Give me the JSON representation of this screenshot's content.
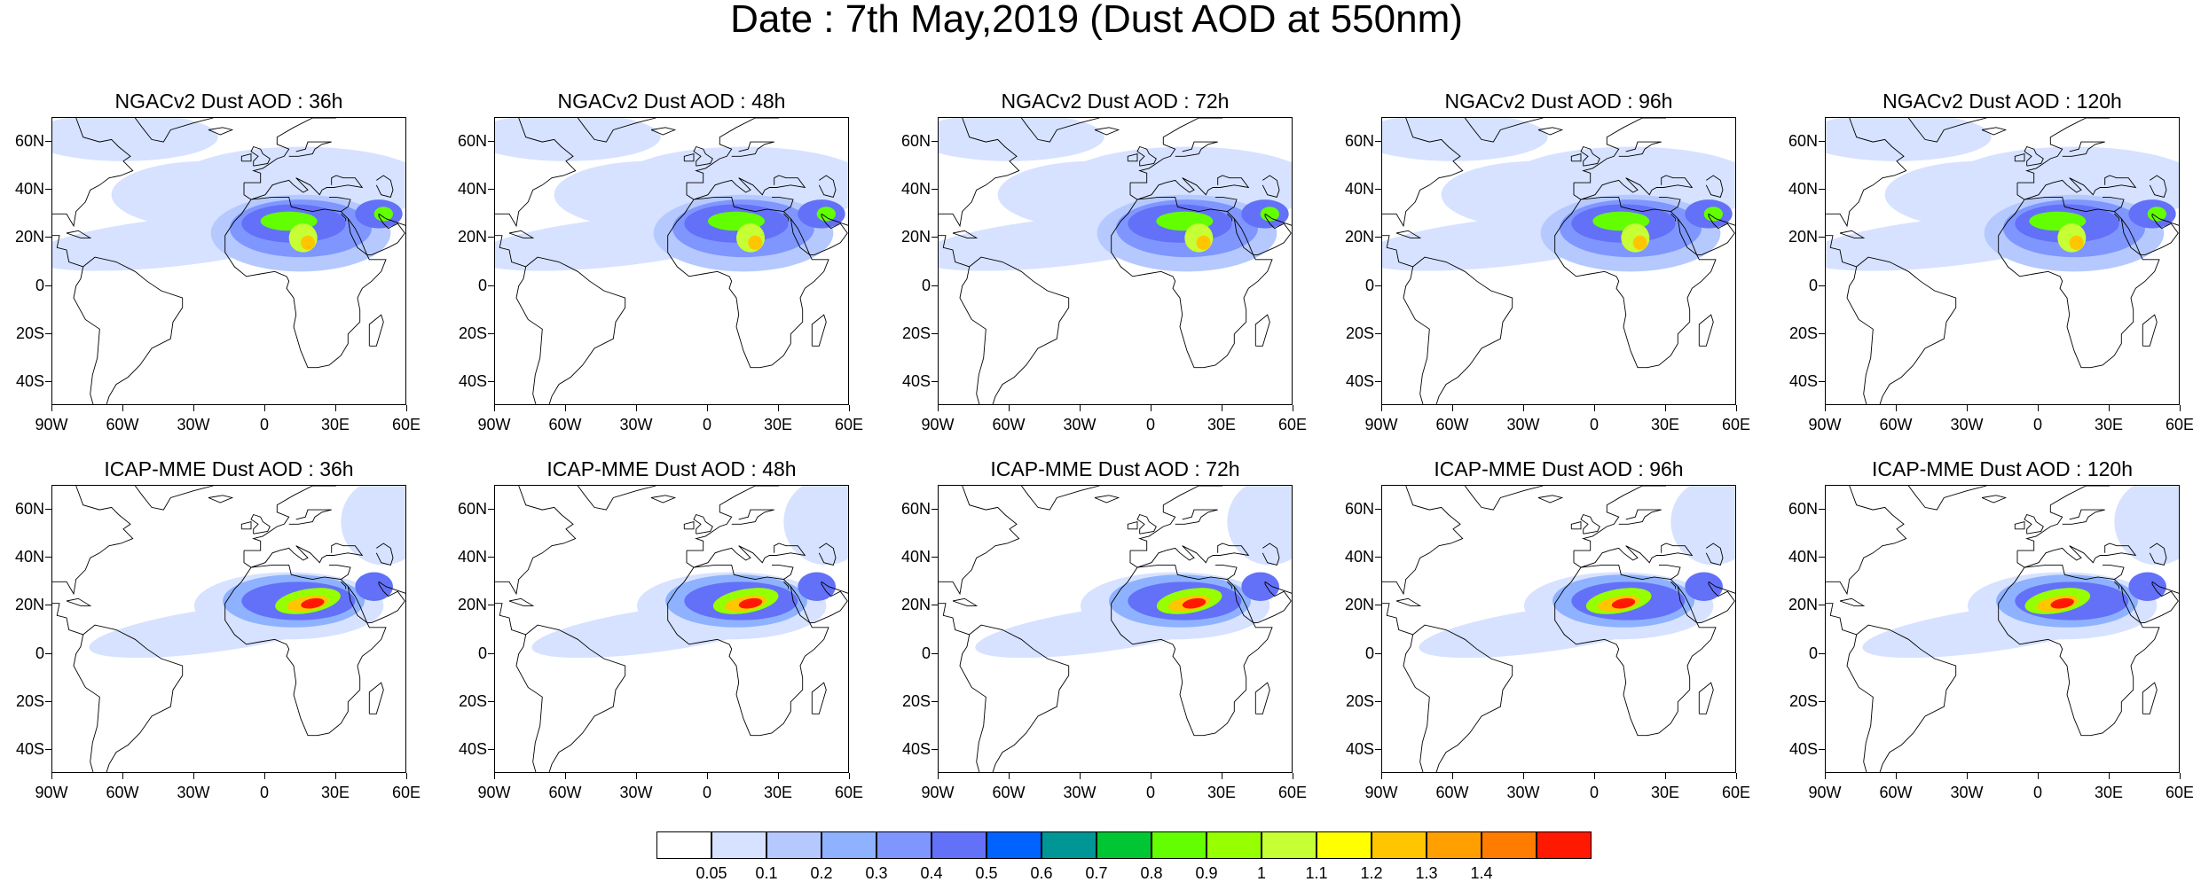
{
  "title": "Date : 7th May,2019 (Dust AOD at 550nm)",
  "panels": [
    {
      "title": "NGACv2 Dust AOD : 36h",
      "model": "ngac",
      "hour": 36
    },
    {
      "title": "NGACv2 Dust AOD : 48h",
      "model": "ngac",
      "hour": 48
    },
    {
      "title": "NGACv2 Dust AOD : 72h",
      "model": "ngac",
      "hour": 72
    },
    {
      "title": "NGACv2 Dust AOD : 96h",
      "model": "ngac",
      "hour": 96
    },
    {
      "title": "NGACv2 Dust AOD : 120h",
      "model": "ngac",
      "hour": 120
    },
    {
      "title": "ICAP-MME Dust AOD : 36h",
      "model": "icap",
      "hour": 36
    },
    {
      "title": "ICAP-MME Dust AOD : 48h",
      "model": "icap",
      "hour": 48
    },
    {
      "title": "ICAP-MME Dust AOD : 72h",
      "model": "icap",
      "hour": 72
    },
    {
      "title": "ICAP-MME Dust AOD : 96h",
      "model": "icap",
      "hour": 96
    },
    {
      "title": "ICAP-MME Dust AOD : 120h",
      "model": "icap",
      "hour": 120
    }
  ],
  "axes": {
    "lon_range": [
      -90,
      60
    ],
    "lat_range": [
      -50,
      70
    ],
    "x_ticks": [
      {
        "label": "90W",
        "value": -90
      },
      {
        "label": "60W",
        "value": -60
      },
      {
        "label": "30W",
        "value": -30
      },
      {
        "label": "0",
        "value": 0
      },
      {
        "label": "30E",
        "value": 30
      },
      {
        "label": "60E",
        "value": 60
      }
    ],
    "y_ticks": [
      {
        "label": "60N",
        "value": 60
      },
      {
        "label": "40N",
        "value": 40
      },
      {
        "label": "20N",
        "value": 20
      },
      {
        "label": "0",
        "value": 0
      },
      {
        "label": "20S",
        "value": -20
      },
      {
        "label": "40S",
        "value": -40
      }
    ]
  },
  "colorbar": {
    "colors": [
      "#ffffff",
      "#d6e2ff",
      "#b5c9ff",
      "#8eb2ff",
      "#7f96ff",
      "#6370f8",
      "#0063ff",
      "#009696",
      "#00c633",
      "#63ff00",
      "#96ff00",
      "#c6ff33",
      "#ffff00",
      "#ffc600",
      "#ffa000",
      "#ff7c00",
      "#ff1900"
    ],
    "labels": [
      "0.05",
      "0.1",
      "0.2",
      "0.3",
      "0.4",
      "0.5",
      "0.6",
      "0.7",
      "0.8",
      "0.9",
      "1",
      "1.1",
      "1.2",
      "1.3",
      "1.4"
    ]
  }
}
